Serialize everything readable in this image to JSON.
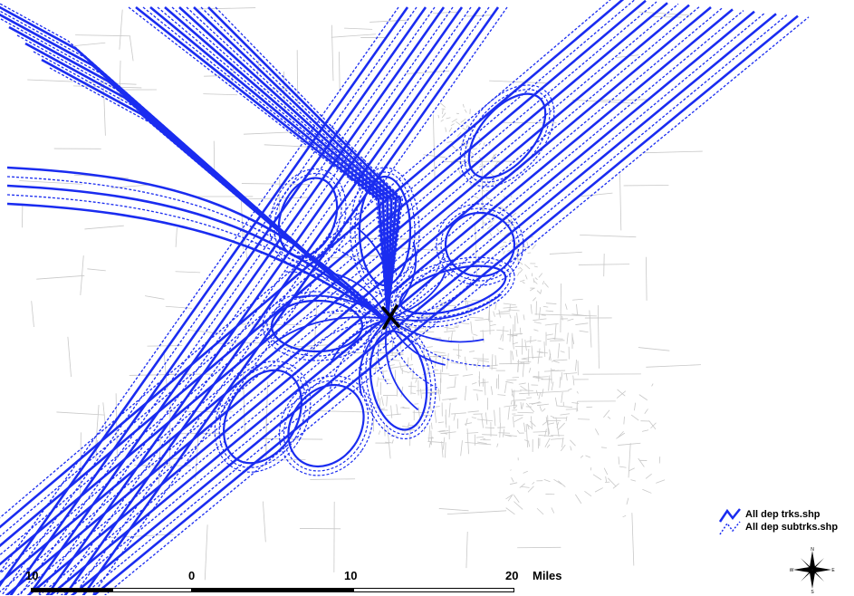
{
  "legend": {
    "items": [
      {
        "label": "All dep trks.shp",
        "style": "solid",
        "color": "#1a2cf0"
      },
      {
        "label": "All dep subtrks.shp",
        "style": "dashed",
        "color": "#1a2cf0"
      }
    ]
  },
  "scalebar": {
    "labels": [
      "10",
      "0",
      "10",
      "20",
      "Miles"
    ]
  },
  "compass": {
    "n": "N",
    "s": "S",
    "e": "E",
    "w": "W"
  },
  "map": {
    "track_color": "#1a2cf0",
    "street_color": "#c8c8c8",
    "airport_marker": "airport-x-icon"
  }
}
